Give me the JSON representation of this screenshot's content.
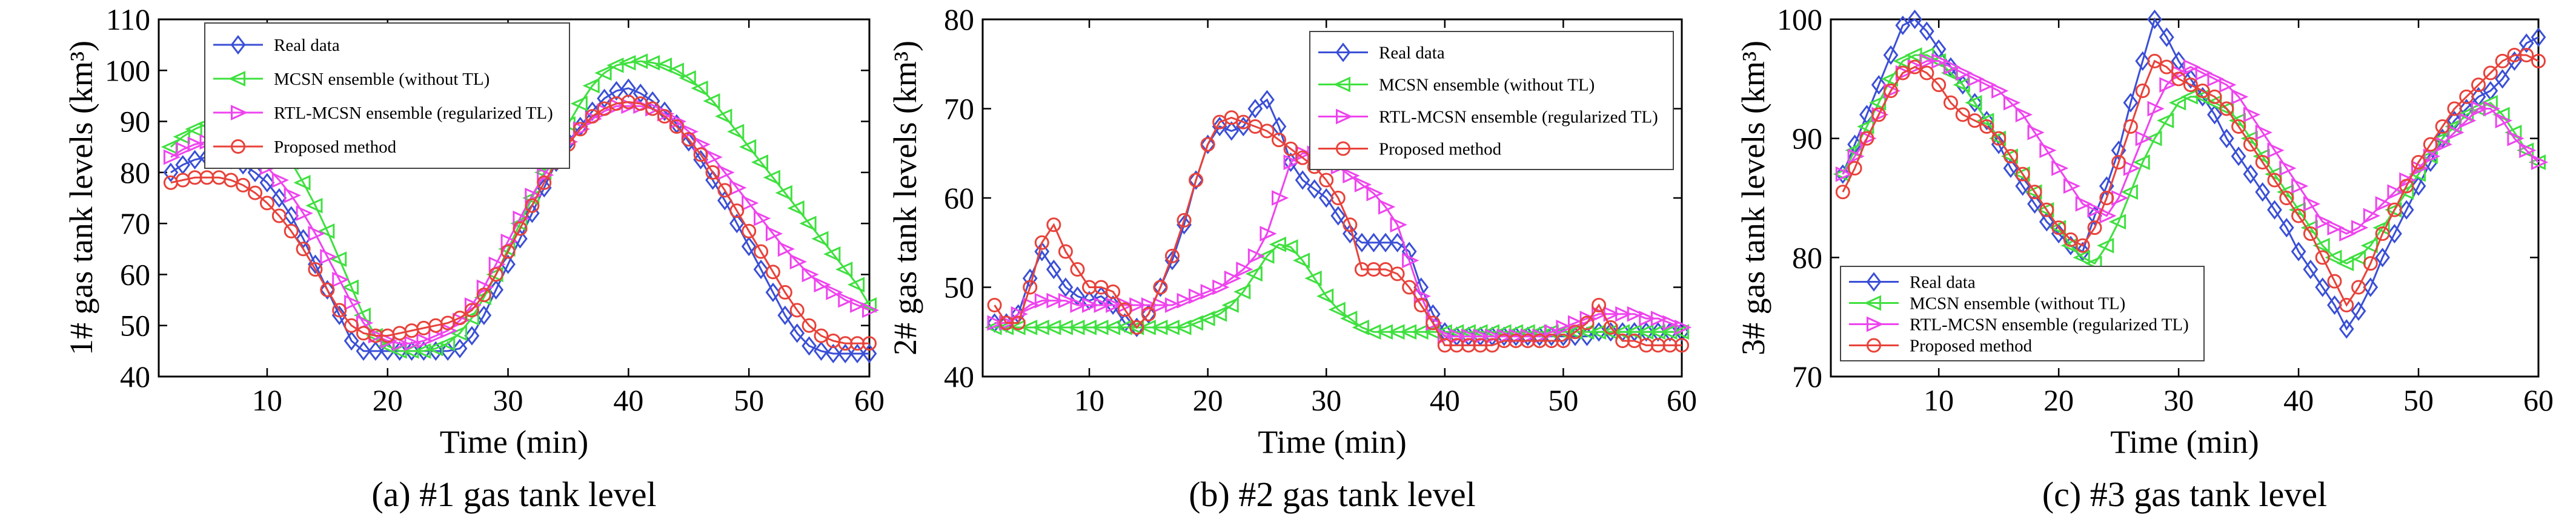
{
  "colors": {
    "Real data": "#3a4fd6",
    "MCSN ensemble (without TL)": "#3fe03f",
    "RTL-MCSN ensemble (regularized TL)": "#ee44ee",
    "Proposed method": "#e8423a"
  },
  "chart_data": [
    {
      "type": "line",
      "caption": "(a) #1 gas tank level",
      "xlabel": "Time (min)",
      "ylabel": "1# gas tank levels (km³)",
      "xlim": [
        1,
        60
      ],
      "ylim": [
        40,
        110
      ],
      "xticks": [
        10,
        20,
        30,
        40,
        50,
        60
      ],
      "yticks": [
        40,
        50,
        60,
        70,
        80,
        90,
        100,
        110
      ],
      "grid": false,
      "legend_position": "top-left",
      "x": [
        2,
        3,
        4,
        5,
        6,
        7,
        8,
        9,
        10,
        11,
        12,
        13,
        14,
        15,
        16,
        17,
        18,
        19,
        20,
        21,
        22,
        23,
        24,
        25,
        26,
        27,
        28,
        29,
        30,
        31,
        32,
        33,
        34,
        35,
        36,
        37,
        38,
        39,
        40,
        41,
        42,
        43,
        44,
        45,
        46,
        47,
        48,
        49,
        50,
        51,
        52,
        53,
        54,
        55,
        56,
        57,
        58,
        59,
        60
      ],
      "series": [
        {
          "name": "Real data",
          "marker": "diamond",
          "values": [
            80,
            81.5,
            82.5,
            83,
            83,
            82.5,
            81.5,
            80,
            78,
            75,
            71.5,
            67,
            62,
            57,
            52,
            47,
            45,
            45,
            45,
            45,
            45,
            45,
            45,
            45,
            45.5,
            48,
            52,
            57,
            62,
            67,
            72,
            77,
            82,
            86,
            89,
            92,
            94.5,
            96,
            96.5,
            95.5,
            94,
            92,
            89.5,
            86,
            82.5,
            78.5,
            74.5,
            70,
            65.5,
            61,
            56.5,
            52,
            48.5,
            46,
            45,
            44.5,
            44.5,
            44.5,
            44.5
          ]
        },
        {
          "name": "MCSN ensemble (without TL)",
          "marker": "triangle-left",
          "values": [
            85,
            87,
            88.5,
            89.5,
            90,
            90,
            89.5,
            88.5,
            87,
            85,
            82,
            78,
            73.5,
            68.5,
            63,
            57.5,
            52,
            48,
            46,
            45,
            45,
            45,
            45.5,
            46.5,
            48.5,
            51.5,
            55.5,
            60,
            65,
            70,
            75,
            80,
            85,
            89.5,
            93.5,
            97,
            99.5,
            101,
            101.5,
            101.8,
            101.5,
            101,
            100,
            98.5,
            96.5,
            94,
            91,
            88,
            85,
            82,
            79,
            76,
            73,
            70,
            67,
            64,
            61,
            58,
            54
          ]
        },
        {
          "name": "RTL-MCSN ensemble (regularized TL)",
          "marker": "triangle-right",
          "values": [
            83,
            84.5,
            85.5,
            86,
            86,
            85.5,
            84.5,
            83,
            81,
            78.5,
            75.5,
            72,
            68,
            63.5,
            59,
            54.5,
            50.5,
            48,
            47,
            46.5,
            46.5,
            47,
            48,
            49,
            51,
            54,
            57.5,
            62,
            66.5,
            71,
            75.5,
            79.5,
            83,
            86,
            88.5,
            90.5,
            92,
            93,
            93,
            93,
            92.5,
            91.5,
            90,
            88,
            85.5,
            83,
            80,
            77,
            74,
            71,
            68,
            65,
            62.5,
            60,
            58,
            56.5,
            55,
            54,
            53
          ]
        },
        {
          "name": "Proposed method",
          "marker": "circle",
          "values": [
            78,
            78.5,
            79,
            79,
            79,
            78.5,
            77.5,
            76,
            74,
            71.5,
            68.5,
            65,
            61,
            57,
            53,
            50,
            48.5,
            48,
            48,
            48.5,
            49,
            49.5,
            50,
            50.5,
            51.5,
            53,
            56,
            60,
            64.5,
            69,
            73.5,
            78,
            82,
            85.5,
            88.5,
            91,
            92.5,
            93.5,
            93.8,
            93.5,
            92.5,
            91,
            89,
            86.5,
            83.5,
            80,
            76.5,
            72.5,
            68.5,
            64.5,
            60.5,
            56.5,
            53,
            50,
            48,
            47,
            46.5,
            46.5,
            46.5
          ]
        }
      ]
    },
    {
      "type": "line",
      "caption": "(b) #2 gas tank level",
      "xlabel": "Time (min)",
      "ylabel": "2# gas tank levels (km³)",
      "xlim": [
        1,
        60
      ],
      "ylim": [
        40,
        80
      ],
      "xticks": [
        10,
        20,
        30,
        40,
        50,
        60
      ],
      "yticks": [
        40,
        50,
        60,
        70,
        80
      ],
      "grid": false,
      "legend_position": "top-right",
      "x": [
        2,
        3,
        4,
        5,
        6,
        7,
        8,
        9,
        10,
        11,
        12,
        13,
        14,
        15,
        16,
        17,
        18,
        19,
        20,
        21,
        22,
        23,
        24,
        25,
        26,
        27,
        28,
        29,
        30,
        31,
        32,
        33,
        34,
        35,
        36,
        37,
        38,
        39,
        40,
        41,
        42,
        43,
        44,
        45,
        46,
        47,
        48,
        49,
        50,
        51,
        52,
        53,
        54,
        55,
        56,
        57,
        58,
        59,
        60
      ],
      "series": [
        {
          "name": "Real data",
          "marker": "diamond",
          "values": [
            46,
            46,
            47,
            51,
            54,
            52,
            50,
            49,
            48.5,
            49,
            48,
            46,
            45.5,
            47,
            50,
            53,
            57,
            62,
            66,
            68,
            67.5,
            68,
            70,
            71,
            68,
            64,
            62,
            61,
            60,
            58,
            56,
            55,
            55,
            55,
            55,
            54,
            50,
            47,
            45,
            44.5,
            44.5,
            44.5,
            44.5,
            44.5,
            44.5,
            44.5,
            44.5,
            44.5,
            44.5,
            44.5,
            44.5,
            45,
            45,
            45,
            45,
            45,
            45,
            45,
            45
          ]
        },
        {
          "name": "MCSN ensemble (without TL)",
          "marker": "triangle-left",
          "values": [
            45.5,
            45.5,
            45.5,
            45.5,
            45.5,
            45.5,
            45.5,
            45.5,
            45.5,
            45.5,
            45.5,
            45.5,
            45.5,
            45.5,
            45.5,
            45.5,
            45.5,
            46,
            46.5,
            47,
            48,
            49.5,
            51.5,
            53.5,
            54.8,
            54.5,
            53,
            51,
            49,
            47.5,
            46.5,
            45.5,
            45,
            45,
            45,
            45,
            45,
            45,
            45,
            45,
            45,
            45,
            45,
            45,
            45,
            45,
            45,
            45,
            45,
            45,
            45,
            45,
            45,
            45,
            45,
            45,
            45,
            45,
            45
          ]
        },
        {
          "name": "RTL-MCSN ensemble (regularized TL)",
          "marker": "triangle-right",
          "values": [
            46,
            46,
            47,
            48,
            48.5,
            48.5,
            48.5,
            48,
            48,
            48,
            48,
            48,
            48,
            48,
            48,
            48,
            48.5,
            49,
            49.5,
            50,
            51,
            52,
            53.5,
            56,
            60,
            64,
            65,
            65,
            64.5,
            63.5,
            62.5,
            61.5,
            60.5,
            59,
            57,
            53,
            49,
            46,
            44.5,
            44.5,
            44.5,
            44.5,
            44.5,
            44.5,
            44.5,
            44.5,
            44.5,
            45,
            45.5,
            46,
            46.5,
            47,
            47,
            47,
            47,
            46.5,
            46.5,
            46,
            45.5
          ]
        },
        {
          "name": "Proposed method",
          "marker": "circle",
          "values": [
            48,
            46,
            46,
            50,
            55,
            57,
            54,
            52,
            50,
            50,
            49.5,
            47.5,
            45.5,
            47,
            50,
            53.5,
            57.5,
            62,
            66,
            68.5,
            69,
            68.5,
            68,
            67.5,
            66.5,
            65.5,
            64.5,
            63.5,
            62,
            60,
            57,
            52,
            52,
            52,
            51.5,
            50,
            48,
            46,
            43.5,
            43.5,
            43.5,
            43.5,
            43.5,
            44,
            44,
            44,
            44,
            44,
            44,
            45,
            46,
            48,
            45.5,
            44,
            44,
            43.5,
            43.5,
            43.5,
            43.5
          ]
        }
      ]
    },
    {
      "type": "line",
      "caption": "(c) #3 gas tank level",
      "xlabel": "Time (min)",
      "ylabel": "3# gas tank levels (km³)",
      "xlim": [
        1,
        60
      ],
      "ylim": [
        70,
        100
      ],
      "xticks": [
        10,
        20,
        30,
        40,
        50,
        60
      ],
      "yticks": [
        70,
        80,
        90,
        100
      ],
      "grid": false,
      "legend_position": "bottom-left",
      "x": [
        2,
        3,
        4,
        5,
        6,
        7,
        8,
        9,
        10,
        11,
        12,
        13,
        14,
        15,
        16,
        17,
        18,
        19,
        20,
        21,
        22,
        23,
        24,
        25,
        26,
        27,
        28,
        29,
        30,
        31,
        32,
        33,
        34,
        35,
        36,
        37,
        38,
        39,
        40,
        41,
        42,
        43,
        44,
        45,
        46,
        47,
        48,
        49,
        50,
        51,
        52,
        53,
        54,
        55,
        56,
        57,
        58,
        59,
        60
      ],
      "series": [
        {
          "name": "Real data",
          "marker": "diamond",
          "values": [
            87,
            89.5,
            92,
            94.5,
            97,
            99.5,
            100,
            99,
            97.5,
            96,
            94.5,
            93,
            91.5,
            89.5,
            87.5,
            86,
            84.5,
            83,
            82,
            81,
            80.5,
            83.5,
            86,
            89,
            93,
            96.5,
            100,
            98.5,
            96.5,
            95,
            93.5,
            92,
            90,
            88.5,
            87,
            85.5,
            84,
            82.5,
            80.5,
            79,
            77.5,
            76,
            74,
            75.5,
            77.5,
            80,
            82,
            84,
            86,
            88,
            90,
            91.5,
            92.5,
            93.5,
            94,
            95,
            96.5,
            98,
            98.5
          ]
        },
        {
          "name": "MCSN ensemble (without TL)",
          "marker": "triangle-left",
          "values": [
            87,
            89,
            91,
            93,
            95,
            96.5,
            97,
            97,
            96.5,
            95.5,
            94.5,
            93,
            91.5,
            90,
            88.5,
            87,
            85.5,
            84,
            82.5,
            81,
            80,
            79.5,
            81,
            83,
            85.5,
            88,
            90,
            91.5,
            93,
            93.5,
            93.5,
            93,
            92.5,
            91.5,
            90,
            88.5,
            87,
            85.5,
            84,
            82.5,
            81,
            80,
            79.5,
            80,
            81,
            82.5,
            84,
            85.5,
            87,
            88.5,
            90,
            91,
            92,
            92.5,
            93,
            92,
            90.5,
            89,
            88
          ]
        },
        {
          "name": "RTL-MCSN ensemble (regularized TL)",
          "marker": "triangle-right",
          "values": [
            87,
            88.5,
            90,
            92,
            94,
            95.5,
            96,
            96.5,
            96.5,
            96,
            95.5,
            95,
            94.5,
            94,
            93,
            92,
            90.5,
            89,
            87.5,
            86,
            84.5,
            84,
            83.5,
            85,
            87.5,
            90,
            92.5,
            94.5,
            95.5,
            96,
            95.5,
            95,
            94.5,
            93.5,
            92,
            90.5,
            89,
            87.5,
            86,
            84.5,
            83,
            82.5,
            82,
            82.5,
            83.5,
            84.5,
            85.5,
            86.5,
            87.5,
            88.5,
            89.5,
            90.5,
            91.5,
            92.5,
            92.5,
            91.5,
            90,
            89,
            88
          ]
        },
        {
          "name": "Proposed method",
          "marker": "circle",
          "values": [
            85.5,
            87.5,
            90,
            92,
            94,
            95.5,
            96,
            95.5,
            94.5,
            93,
            92,
            91.5,
            91,
            90,
            88.5,
            87,
            85.5,
            84,
            82.5,
            81.5,
            81,
            82.5,
            85,
            88,
            91,
            94,
            96.5,
            96,
            95,
            94.5,
            94,
            93.5,
            92.5,
            91,
            89.5,
            88,
            86.5,
            85,
            83.5,
            82,
            80,
            78,
            76,
            77.5,
            79.5,
            82,
            84,
            86,
            88,
            89.5,
            91,
            92.5,
            93.5,
            94.5,
            95.5,
            96.5,
            97,
            97,
            96.5
          ]
        }
      ]
    }
  ]
}
